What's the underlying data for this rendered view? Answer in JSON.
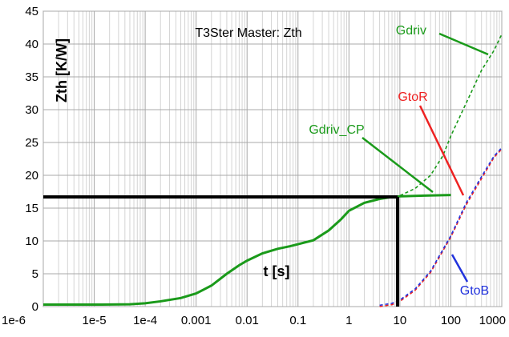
{
  "chart_data": {
    "type": "line",
    "title": "T3Ster Master: Zth",
    "xlabel": "t [s]",
    "ylabel": "Zth [K/W]",
    "x_scale": "log",
    "xlim": [
      1e-06,
      1000
    ],
    "ylim": [
      0,
      45
    ],
    "grid": true,
    "x_ticks": [
      {
        "value": 1e-06,
        "label": "1e-6"
      },
      {
        "value": 1e-05,
        "label": "1e-5"
      },
      {
        "value": 0.0001,
        "label": "1e-4"
      },
      {
        "value": 0.001,
        "label": "0.001"
      },
      {
        "value": 0.01,
        "label": "0.01"
      },
      {
        "value": 0.1,
        "label": "0.1"
      },
      {
        "value": 1,
        "label": "1"
      },
      {
        "value": 10,
        "label": "10"
      },
      {
        "value": 100,
        "label": "100"
      },
      {
        "value": 1000,
        "label": "1000"
      }
    ],
    "y_ticks": [
      {
        "value": 0,
        "label": "0"
      },
      {
        "value": 5,
        "label": "5"
      },
      {
        "value": 10,
        "label": "10"
      },
      {
        "value": 15,
        "label": "15"
      },
      {
        "value": 20,
        "label": "20"
      },
      {
        "value": 25,
        "label": "25"
      },
      {
        "value": 30,
        "label": "30"
      },
      {
        "value": 35,
        "label": "35"
      },
      {
        "value": 40,
        "label": "40"
      },
      {
        "value": 45,
        "label": "45"
      }
    ],
    "series": [
      {
        "name": "Gdriv_CP",
        "color": "#1a9a1a",
        "style": "solid",
        "points": [
          [
            1e-06,
            0.3
          ],
          [
            1e-05,
            0.3
          ],
          [
            5e-05,
            0.35
          ],
          [
            0.0001,
            0.5
          ],
          [
            0.0002,
            0.8
          ],
          [
            0.0005,
            1.3
          ],
          [
            0.001,
            2.0
          ],
          [
            0.002,
            3.2
          ],
          [
            0.004,
            5.0
          ],
          [
            0.007,
            6.3
          ],
          [
            0.01,
            7.0
          ],
          [
            0.02,
            8.1
          ],
          [
            0.04,
            8.8
          ],
          [
            0.07,
            9.2
          ],
          [
            0.1,
            9.5
          ],
          [
            0.2,
            10.1
          ],
          [
            0.4,
            11.6
          ],
          [
            0.7,
            13.3
          ],
          [
            1,
            14.6
          ],
          [
            2,
            15.8
          ],
          [
            4,
            16.4
          ],
          [
            7,
            16.7
          ],
          [
            10,
            16.8
          ],
          [
            30,
            16.9
          ],
          [
            100,
            17.0
          ]
        ]
      },
      {
        "name": "Gdriv",
        "color": "#1a9a1a",
        "style": "dashed",
        "points": [
          [
            8,
            16.6
          ],
          [
            10,
            16.9
          ],
          [
            20,
            18
          ],
          [
            40,
            20
          ],
          [
            70,
            23
          ],
          [
            100,
            26
          ],
          [
            200,
            31
          ],
          [
            400,
            36
          ],
          [
            700,
            39
          ],
          [
            1000,
            41.5
          ]
        ]
      },
      {
        "name": "GtoR",
        "color": "#ee2222",
        "style": "dashed",
        "points": [
          [
            4,
            0
          ],
          [
            7,
            0.3
          ],
          [
            10,
            0.8
          ],
          [
            20,
            2.5
          ],
          [
            40,
            5.2
          ],
          [
            70,
            8.5
          ],
          [
            100,
            10.6
          ],
          [
            200,
            15.5
          ],
          [
            400,
            19.5
          ],
          [
            700,
            22.7
          ],
          [
            1000,
            24
          ]
        ]
      },
      {
        "name": "GtoB",
        "color": "#2233dd",
        "style": "dashed",
        "points": [
          [
            4,
            0.2
          ],
          [
            7,
            0.5
          ],
          [
            10,
            1.0
          ],
          [
            20,
            2.7
          ],
          [
            40,
            5.4
          ],
          [
            70,
            8.7
          ],
          [
            100,
            10.8
          ],
          [
            200,
            15.8
          ],
          [
            400,
            19.8
          ],
          [
            700,
            22.9
          ],
          [
            1000,
            24.2
          ]
        ]
      }
    ],
    "reference_point": {
      "x": 9,
      "y": 16.7
    }
  }
}
